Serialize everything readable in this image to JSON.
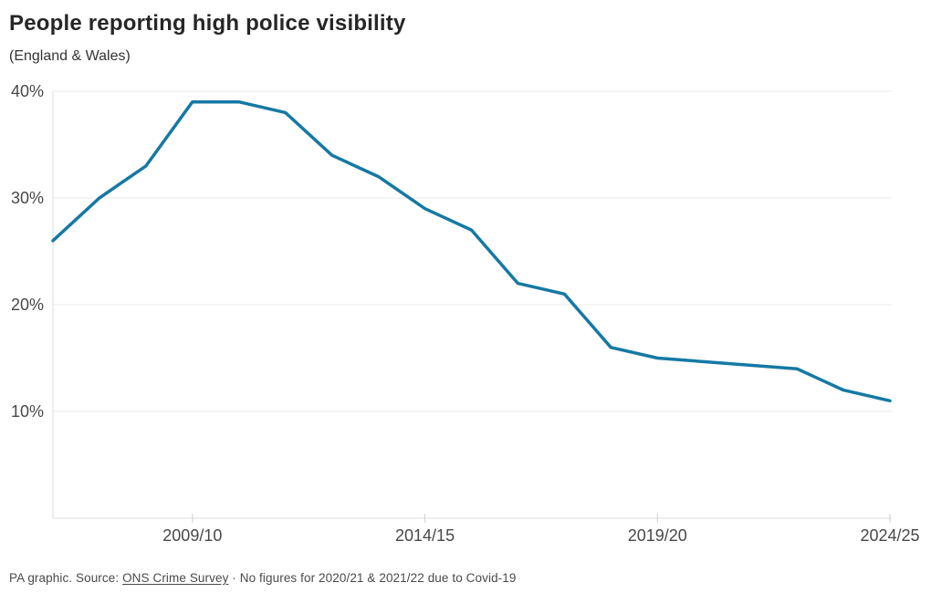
{
  "header": {
    "title": "People reporting high police visibility",
    "subtitle": "(England & Wales)"
  },
  "footer": {
    "prefix": "PA graphic. Source: ",
    "link_label": "ONS Crime Survey",
    "suffix": " · No figures for 2020/21 & 2021/22 due to Covid-19"
  },
  "colors": {
    "line": "#1579a3",
    "grid": "#ebebeb",
    "axis": "#dddddd",
    "tick": "#cfcfcf",
    "axis_label": "#484848",
    "title": "#262626",
    "footer_text": "#4a4a4a"
  },
  "chart_data": {
    "type": "line",
    "title": "People reporting high police visibility",
    "subtitle": "(England & Wales)",
    "x": [
      "2006/07",
      "2007/08",
      "2008/09",
      "2009/10",
      "2010/11",
      "2011/12",
      "2012/13",
      "2013/14",
      "2014/15",
      "2015/16",
      "2016/17",
      "2017/18",
      "2018/19",
      "2019/20",
      "2020/21",
      "2021/22",
      "2022/23",
      "2023/24",
      "2024/25"
    ],
    "values": [
      26,
      30,
      33,
      39,
      39,
      38,
      34,
      32,
      29,
      27,
      22,
      21,
      16,
      15,
      null,
      null,
      14,
      12,
      11
    ],
    "unit": "%",
    "ylim": [
      0,
      40
    ],
    "y_ticks": [
      10,
      20,
      30,
      40
    ],
    "x_tick_labels": [
      "2009/10",
      "2014/15",
      "2019/20",
      "2024/25"
    ],
    "grid": "horizontal",
    "legend": "none",
    "annotation": "No figures for 2020/21 & 2021/22 due to Covid-19 (line bridges the gap)"
  }
}
